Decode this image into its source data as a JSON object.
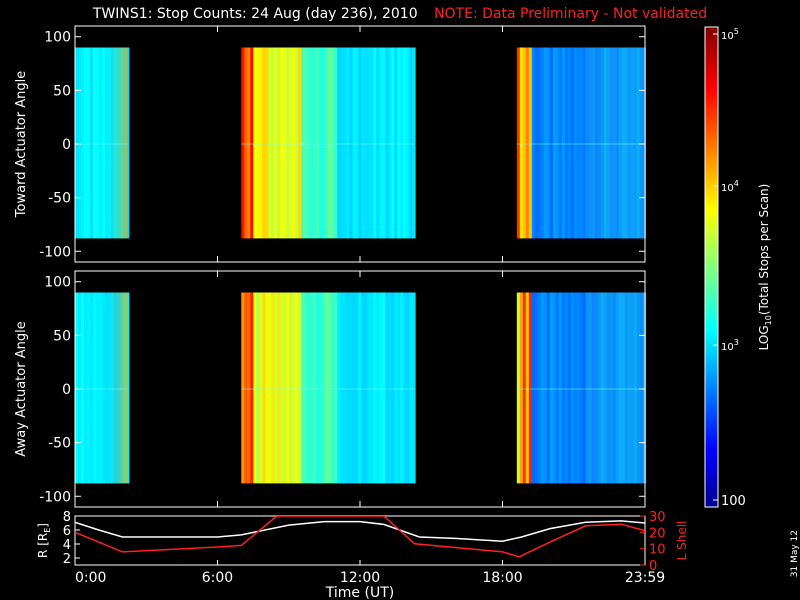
{
  "title": "TWINS1: Stop Counts: 24 Aug (day 236), 2010",
  "note": "NOTE: Data Preliminary - Not validated",
  "stamp": "31 May 12",
  "colors": {
    "background": "#000000",
    "note": "#ff2020",
    "r_line": "#ffffff",
    "l_shell_line": "#ff2020"
  },
  "chart_data": [
    {
      "type": "heatmap",
      "name": "toward",
      "ylabel": "Toward Actuator Angle",
      "ylim": [
        -110,
        110
      ],
      "yticks": [
        "100",
        "50",
        "0",
        "-50",
        "-100"
      ],
      "xlim": [
        0,
        24
      ],
      "data_angle_range": [
        -88,
        90
      ],
      "data_blocks_hours": [
        [
          0.0,
          2.2
        ],
        [
          7.0,
          14.3
        ],
        [
          18.6,
          24.0
        ]
      ],
      "grid": false
    },
    {
      "type": "heatmap",
      "name": "away",
      "ylabel": "Away Actuator Angle",
      "ylim": [
        -110,
        110
      ],
      "yticks": [
        "100",
        "50",
        "0",
        "-50",
        "-100"
      ],
      "xlim": [
        0,
        24
      ],
      "xticks": [
        "0:00",
        "6:00",
        "12:00",
        "18:00",
        "23:59"
      ],
      "xlabel": "Time (UT)",
      "data_angle_range": [
        -88,
        90
      ],
      "data_blocks_hours": [
        [
          0.0,
          2.2
        ],
        [
          7.0,
          14.3
        ],
        [
          18.6,
          24.0
        ]
      ],
      "grid": false
    },
    {
      "type": "line",
      "name": "orbit",
      "ylabel_left": "R [R",
      "ylabel_left_sub": "E",
      "ylabel_left_end": "]",
      "ylim_left": [
        1,
        8
      ],
      "yticks_left": [
        "8",
        "6",
        "4",
        "2"
      ],
      "ylabel_right": "L Shell",
      "ylim_right": [
        0,
        30
      ],
      "yticks_right": [
        "30",
        "20",
        "10",
        "0"
      ],
      "xticks": [
        "0:00",
        "6:00",
        "12:00",
        "18:00",
        "23:59"
      ],
      "xlabel": "Time (UT)",
      "series": [
        {
          "axis": "left",
          "color": "#ffffff",
          "x": [
            0,
            1,
            2,
            4,
            6,
            7,
            9,
            10.5,
            12,
            13,
            14.5,
            16,
            18,
            18.8,
            20,
            21.5,
            23,
            24
          ],
          "y": [
            7.1,
            6.0,
            5.0,
            5.0,
            5.0,
            5.3,
            6.7,
            7.2,
            7.2,
            6.8,
            5.0,
            4.8,
            4.4,
            5.0,
            6.2,
            7.1,
            7.3,
            7.0
          ]
        },
        {
          "axis": "right",
          "color": "#ff2020",
          "x": [
            0,
            1,
            2,
            6,
            7,
            8.5,
            9.0,
            12.5,
            13.0,
            14.3,
            18.0,
            18.7,
            20,
            21.5,
            23,
            24
          ],
          "y": [
            20,
            14,
            8,
            11,
            12,
            30,
            30,
            30,
            30,
            13,
            8,
            5,
            14,
            24,
            25,
            21
          ]
        }
      ]
    },
    {
      "type": "heatmap",
      "name": "colorbar",
      "title": "LOG",
      "title_sub": "10",
      "title_end": "(Total Stops per Scan)",
      "ticks": [
        "10",
        "10",
        "10",
        "100"
      ],
      "tick_exps": [
        "5",
        "4",
        "3",
        ""
      ]
    }
  ]
}
